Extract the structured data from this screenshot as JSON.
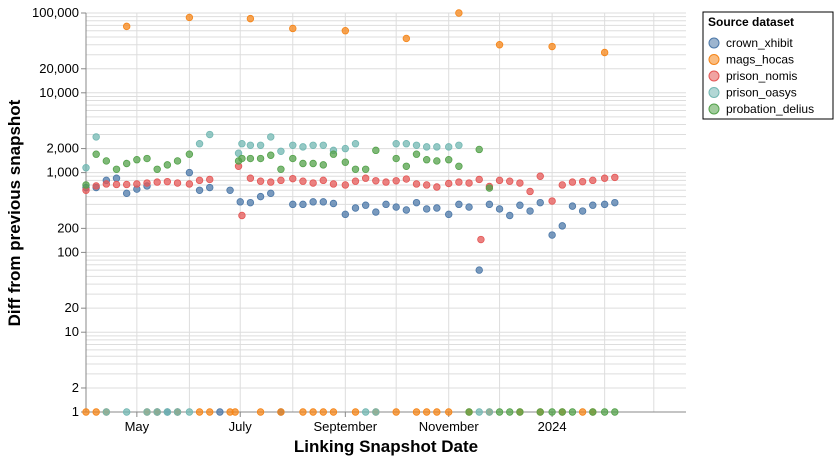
{
  "chart_data": {
    "type": "scatter",
    "title": "",
    "xlabel": "Linking Snapshot Date",
    "ylabel": "Diff from previous snapshot",
    "x_scale": "time",
    "y_scale": "log",
    "ylim": [
      1,
      100000
    ],
    "xlim": [
      "2023-04-01",
      "2024-03-20"
    ],
    "x_ticks": [
      {
        "date": "2023-05-01",
        "label": "May"
      },
      {
        "date": "2023-07-01",
        "label": "July"
      },
      {
        "date": "2023-09-01",
        "label": "September"
      },
      {
        "date": "2023-11-01",
        "label": "November"
      },
      {
        "date": "2024-01-01",
        "label": "2024"
      }
    ],
    "y_ticks": [
      {
        "value": 1,
        "label": "1"
      },
      {
        "value": 2,
        "label": "2"
      },
      {
        "value": 10,
        "label": "10"
      },
      {
        "value": 20,
        "label": "20"
      },
      {
        "value": 100,
        "label": "100"
      },
      {
        "value": 200,
        "label": "200"
      },
      {
        "value": 1000,
        "label": "1,000"
      },
      {
        "value": 2000,
        "label": "2,000"
      },
      {
        "value": 10000,
        "label": "10,000"
      },
      {
        "value": 20000,
        "label": "20,000"
      },
      {
        "value": 100000,
        "label": "100,000"
      }
    ],
    "grid": true,
    "legend": {
      "title": "Source dataset",
      "position": "top-right"
    },
    "series": [
      {
        "name": "crown_xhibit",
        "color": "#4c78a8",
        "points": [
          {
            "x": "2023-04-01",
            "y": 650
          },
          {
            "x": "2023-04-07",
            "y": 650
          },
          {
            "x": "2023-04-13",
            "y": 800
          },
          {
            "x": "2023-04-19",
            "y": 850
          },
          {
            "x": "2023-04-25",
            "y": 550
          },
          {
            "x": "2023-05-01",
            "y": 620
          },
          {
            "x": "2023-05-07",
            "y": 680
          },
          {
            "x": "2023-05-13",
            "y": 1
          },
          {
            "x": "2023-05-19",
            "y": 1
          },
          {
            "x": "2023-05-25",
            "y": 1
          },
          {
            "x": "2023-06-01",
            "y": 1000
          },
          {
            "x": "2023-06-07",
            "y": 600
          },
          {
            "x": "2023-06-13",
            "y": 650
          },
          {
            "x": "2023-06-19",
            "y": 1
          },
          {
            "x": "2023-06-25",
            "y": 600
          },
          {
            "x": "2023-07-01",
            "y": 430
          },
          {
            "x": "2023-07-07",
            "y": 420
          },
          {
            "x": "2023-07-13",
            "y": 500
          },
          {
            "x": "2023-07-19",
            "y": 550
          },
          {
            "x": "2023-07-25",
            "y": 1
          },
          {
            "x": "2023-08-01",
            "y": 400
          },
          {
            "x": "2023-08-07",
            "y": 400
          },
          {
            "x": "2023-08-13",
            "y": 430
          },
          {
            "x": "2023-08-19",
            "y": 430
          },
          {
            "x": "2023-08-25",
            "y": 410
          },
          {
            "x": "2023-09-01",
            "y": 300
          },
          {
            "x": "2023-09-07",
            "y": 360
          },
          {
            "x": "2023-09-13",
            "y": 390
          },
          {
            "x": "2023-09-19",
            "y": 320
          },
          {
            "x": "2023-09-25",
            "y": 400
          },
          {
            "x": "2023-10-01",
            "y": 370
          },
          {
            "x": "2023-10-07",
            "y": 340
          },
          {
            "x": "2023-10-13",
            "y": 420
          },
          {
            "x": "2023-10-19",
            "y": 350
          },
          {
            "x": "2023-10-25",
            "y": 360
          },
          {
            "x": "2023-11-01",
            "y": 300
          },
          {
            "x": "2023-11-07",
            "y": 400
          },
          {
            "x": "2023-11-13",
            "y": 370
          },
          {
            "x": "2023-11-19",
            "y": 60
          },
          {
            "x": "2023-11-25",
            "y": 400
          },
          {
            "x": "2023-12-01",
            "y": 350
          },
          {
            "x": "2023-12-07",
            "y": 290
          },
          {
            "x": "2023-12-13",
            "y": 390
          },
          {
            "x": "2023-12-19",
            "y": 330
          },
          {
            "x": "2023-12-25",
            "y": 420
          },
          {
            "x": "2024-01-01",
            "y": 165
          },
          {
            "x": "2024-01-07",
            "y": 215
          },
          {
            "x": "2024-01-13",
            "y": 380
          },
          {
            "x": "2024-01-19",
            "y": 330
          },
          {
            "x": "2024-01-25",
            "y": 390
          },
          {
            "x": "2024-02-01",
            "y": 400
          },
          {
            "x": "2024-02-07",
            "y": 420
          }
        ]
      },
      {
        "name": "mags_hocas",
        "color": "#f58518",
        "points": [
          {
            "x": "2023-04-01",
            "y": 1
          },
          {
            "x": "2023-04-07",
            "y": 1
          },
          {
            "x": "2023-04-13",
            "y": 1
          },
          {
            "x": "2023-04-25",
            "y": 68000
          },
          {
            "x": "2023-05-07",
            "y": 1
          },
          {
            "x": "2023-05-13",
            "y": 1
          },
          {
            "x": "2023-05-25",
            "y": 1
          },
          {
            "x": "2023-06-01",
            "y": 88000
          },
          {
            "x": "2023-06-07",
            "y": 1
          },
          {
            "x": "2023-06-13",
            "y": 1
          },
          {
            "x": "2023-06-25",
            "y": 1
          },
          {
            "x": "2023-06-28",
            "y": 1
          },
          {
            "x": "2023-07-07",
            "y": 85000
          },
          {
            "x": "2023-07-13",
            "y": 1
          },
          {
            "x": "2023-07-25",
            "y": 1
          },
          {
            "x": "2023-08-01",
            "y": 64000
          },
          {
            "x": "2023-08-07",
            "y": 1
          },
          {
            "x": "2023-08-13",
            "y": 1
          },
          {
            "x": "2023-08-19",
            "y": 1
          },
          {
            "x": "2023-08-25",
            "y": 1
          },
          {
            "x": "2023-09-01",
            "y": 60000
          },
          {
            "x": "2023-09-07",
            "y": 1
          },
          {
            "x": "2023-09-19",
            "y": 1
          },
          {
            "x": "2023-10-01",
            "y": 1
          },
          {
            "x": "2023-10-07",
            "y": 48000
          },
          {
            "x": "2023-10-13",
            "y": 1
          },
          {
            "x": "2023-10-19",
            "y": 1
          },
          {
            "x": "2023-10-25",
            "y": 1
          },
          {
            "x": "2023-11-01",
            "y": 1
          },
          {
            "x": "2023-11-07",
            "y": 100000
          },
          {
            "x": "2023-11-13",
            "y": 1
          },
          {
            "x": "2023-11-25",
            "y": 1
          },
          {
            "x": "2023-12-01",
            "y": 40000
          },
          {
            "x": "2023-12-13",
            "y": 1
          },
          {
            "x": "2023-12-25",
            "y": 1
          },
          {
            "x": "2024-01-01",
            "y": 38000
          },
          {
            "x": "2024-01-07",
            "y": 1
          },
          {
            "x": "2024-01-19",
            "y": 1
          },
          {
            "x": "2024-01-25",
            "y": 1
          },
          {
            "x": "2024-02-01",
            "y": 32000
          }
        ]
      },
      {
        "name": "prison_nomis",
        "color": "#e45756",
        "points": [
          {
            "x": "2023-04-01",
            "y": 600
          },
          {
            "x": "2023-04-07",
            "y": 680
          },
          {
            "x": "2023-04-13",
            "y": 720
          },
          {
            "x": "2023-04-19",
            "y": 710
          },
          {
            "x": "2023-04-25",
            "y": 710
          },
          {
            "x": "2023-05-01",
            "y": 720
          },
          {
            "x": "2023-05-07",
            "y": 740
          },
          {
            "x": "2023-05-13",
            "y": 760
          },
          {
            "x": "2023-05-19",
            "y": 770
          },
          {
            "x": "2023-05-25",
            "y": 740
          },
          {
            "x": "2023-06-01",
            "y": 720
          },
          {
            "x": "2023-06-07",
            "y": 800
          },
          {
            "x": "2023-06-13",
            "y": 820
          },
          {
            "x": "2023-06-30",
            "y": 1200
          },
          {
            "x": "2023-07-02",
            "y": 290
          },
          {
            "x": "2023-07-07",
            "y": 850
          },
          {
            "x": "2023-07-13",
            "y": 780
          },
          {
            "x": "2023-07-19",
            "y": 760
          },
          {
            "x": "2023-07-25",
            "y": 800
          },
          {
            "x": "2023-08-01",
            "y": 840
          },
          {
            "x": "2023-08-07",
            "y": 780
          },
          {
            "x": "2023-08-13",
            "y": 740
          },
          {
            "x": "2023-08-19",
            "y": 800
          },
          {
            "x": "2023-08-25",
            "y": 720
          },
          {
            "x": "2023-09-01",
            "y": 700
          },
          {
            "x": "2023-09-07",
            "y": 780
          },
          {
            "x": "2023-09-13",
            "y": 850
          },
          {
            "x": "2023-09-19",
            "y": 790
          },
          {
            "x": "2023-09-25",
            "y": 760
          },
          {
            "x": "2023-10-01",
            "y": 790
          },
          {
            "x": "2023-10-07",
            "y": 830
          },
          {
            "x": "2023-10-13",
            "y": 720
          },
          {
            "x": "2023-10-19",
            "y": 700
          },
          {
            "x": "2023-10-25",
            "y": 660
          },
          {
            "x": "2023-11-01",
            "y": 730
          },
          {
            "x": "2023-11-07",
            "y": 760
          },
          {
            "x": "2023-11-13",
            "y": 740
          },
          {
            "x": "2023-11-19",
            "y": 820
          },
          {
            "x": "2023-11-20",
            "y": 145
          },
          {
            "x": "2023-11-25",
            "y": 670
          },
          {
            "x": "2023-12-01",
            "y": 800
          },
          {
            "x": "2023-12-07",
            "y": 780
          },
          {
            "x": "2023-12-13",
            "y": 740
          },
          {
            "x": "2023-12-19",
            "y": 580
          },
          {
            "x": "2023-12-25",
            "y": 900
          },
          {
            "x": "2024-01-01",
            "y": 440
          },
          {
            "x": "2024-01-07",
            "y": 700
          },
          {
            "x": "2024-01-13",
            "y": 760
          },
          {
            "x": "2024-01-19",
            "y": 770
          },
          {
            "x": "2024-01-25",
            "y": 800
          },
          {
            "x": "2024-02-01",
            "y": 850
          },
          {
            "x": "2024-02-07",
            "y": 870
          }
        ]
      },
      {
        "name": "prison_oasys",
        "color": "#72b7b2",
        "points": [
          {
            "x": "2023-04-01",
            "y": 1150
          },
          {
            "x": "2023-04-07",
            "y": 2800
          },
          {
            "x": "2023-04-13",
            "y": 1
          },
          {
            "x": "2023-04-25",
            "y": 1
          },
          {
            "x": "2023-05-07",
            "y": 1
          },
          {
            "x": "2023-05-13",
            "y": 1
          },
          {
            "x": "2023-05-19",
            "y": 1
          },
          {
            "x": "2023-05-25",
            "y": 1
          },
          {
            "x": "2023-06-01",
            "y": 1
          },
          {
            "x": "2023-06-07",
            "y": 2300
          },
          {
            "x": "2023-06-13",
            "y": 3000
          },
          {
            "x": "2023-06-30",
            "y": 1750
          },
          {
            "x": "2023-07-02",
            "y": 2300
          },
          {
            "x": "2023-07-07",
            "y": 2200
          },
          {
            "x": "2023-07-13",
            "y": 2200
          },
          {
            "x": "2023-07-19",
            "y": 2800
          },
          {
            "x": "2023-07-25",
            "y": 1850
          },
          {
            "x": "2023-08-01",
            "y": 2200
          },
          {
            "x": "2023-08-07",
            "y": 2100
          },
          {
            "x": "2023-08-13",
            "y": 2200
          },
          {
            "x": "2023-08-19",
            "y": 2200
          },
          {
            "x": "2023-08-25",
            "y": 1900
          },
          {
            "x": "2023-09-01",
            "y": 2000
          },
          {
            "x": "2023-09-07",
            "y": 2300
          },
          {
            "x": "2023-09-13",
            "y": 1
          },
          {
            "x": "2023-09-19",
            "y": 1
          },
          {
            "x": "2023-10-01",
            "y": 2300
          },
          {
            "x": "2023-10-07",
            "y": 2300
          },
          {
            "x": "2023-10-13",
            "y": 2200
          },
          {
            "x": "2023-10-19",
            "y": 2100
          },
          {
            "x": "2023-10-25",
            "y": 2100
          },
          {
            "x": "2023-11-01",
            "y": 2100
          },
          {
            "x": "2023-11-07",
            "y": 2200
          },
          {
            "x": "2023-11-19",
            "y": 1
          },
          {
            "x": "2023-11-25",
            "y": 1
          }
        ]
      },
      {
        "name": "probation_delius",
        "color": "#54a24b",
        "points": [
          {
            "x": "2023-04-01",
            "y": 700
          },
          {
            "x": "2023-04-07",
            "y": 1700
          },
          {
            "x": "2023-04-13",
            "y": 1400
          },
          {
            "x": "2023-04-19",
            "y": 1100
          },
          {
            "x": "2023-04-25",
            "y": 1300
          },
          {
            "x": "2023-05-01",
            "y": 1450
          },
          {
            "x": "2023-05-07",
            "y": 1500
          },
          {
            "x": "2023-05-13",
            "y": 1100
          },
          {
            "x": "2023-05-19",
            "y": 1250
          },
          {
            "x": "2023-05-25",
            "y": 1400
          },
          {
            "x": "2023-06-01",
            "y": 1700
          },
          {
            "x": "2023-06-30",
            "y": 1400
          },
          {
            "x": "2023-07-02",
            "y": 1500
          },
          {
            "x": "2023-07-07",
            "y": 1500
          },
          {
            "x": "2023-07-13",
            "y": 1500
          },
          {
            "x": "2023-07-19",
            "y": 1650
          },
          {
            "x": "2023-07-25",
            "y": 1100
          },
          {
            "x": "2023-08-01",
            "y": 1500
          },
          {
            "x": "2023-08-07",
            "y": 1300
          },
          {
            "x": "2023-08-13",
            "y": 1300
          },
          {
            "x": "2023-08-19",
            "y": 1250
          },
          {
            "x": "2023-08-25",
            "y": 1700
          },
          {
            "x": "2023-09-01",
            "y": 1350
          },
          {
            "x": "2023-09-07",
            "y": 1100
          },
          {
            "x": "2023-09-13",
            "y": 1100
          },
          {
            "x": "2023-09-19",
            "y": 1900
          },
          {
            "x": "2023-10-01",
            "y": 1500
          },
          {
            "x": "2023-10-07",
            "y": 1200
          },
          {
            "x": "2023-10-13",
            "y": 1700
          },
          {
            "x": "2023-10-19",
            "y": 1450
          },
          {
            "x": "2023-10-25",
            "y": 1400
          },
          {
            "x": "2023-11-01",
            "y": 1450
          },
          {
            "x": "2023-11-07",
            "y": 1200
          },
          {
            "x": "2023-11-13",
            "y": 1
          },
          {
            "x": "2023-11-19",
            "y": 1950
          },
          {
            "x": "2023-11-25",
            "y": 640
          },
          {
            "x": "2023-12-01",
            "y": 1
          },
          {
            "x": "2023-12-07",
            "y": 1
          },
          {
            "x": "2023-12-13",
            "y": 1
          },
          {
            "x": "2023-12-25",
            "y": 1
          },
          {
            "x": "2024-01-01",
            "y": 1
          },
          {
            "x": "2024-01-07",
            "y": 1
          },
          {
            "x": "2024-01-13",
            "y": 1
          },
          {
            "x": "2024-01-25",
            "y": 1
          },
          {
            "x": "2024-02-01",
            "y": 1
          },
          {
            "x": "2024-02-07",
            "y": 1
          }
        ]
      }
    ]
  }
}
